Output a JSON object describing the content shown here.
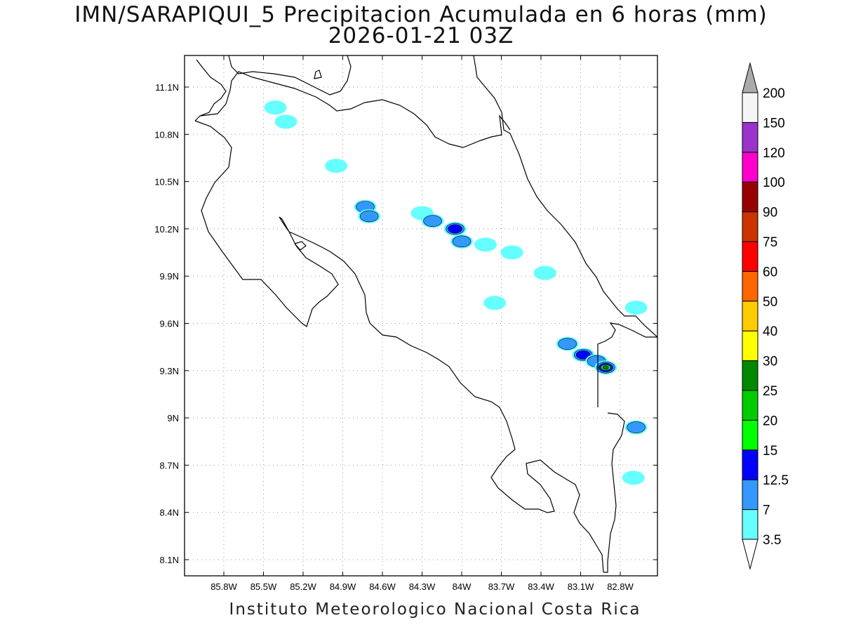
{
  "title": {
    "line1": "IMN/SARAPIQUI_5 Precipitacion Acumulada en 6 horas (mm)",
    "line2": "2026-01-21 03Z"
  },
  "footer": "Instituto Meteorologico Nacional Costa Rica",
  "map": {
    "lon_ticks": [
      "85.8W",
      "85.5W",
      "85.2W",
      "84.9W",
      "84.6W",
      "84.3W",
      "84W",
      "83.7W",
      "83.4W",
      "83.1W",
      "82.8W"
    ],
    "lat_ticks": [
      "11.1N",
      "10.8N",
      "10.5N",
      "10.2N",
      "9.9N",
      "9.6N",
      "9.3N",
      "9N",
      "8.7N",
      "8.4N",
      "8.1N"
    ],
    "lon_tick_values": [
      -85.8,
      -85.5,
      -85.2,
      -84.9,
      -84.6,
      -84.3,
      -84.0,
      -83.7,
      -83.4,
      -83.1,
      -82.8
    ],
    "lat_tick_values": [
      11.1,
      10.8,
      10.5,
      10.2,
      9.9,
      9.6,
      9.3,
      9.0,
      8.7,
      8.4,
      8.1
    ],
    "grid": true,
    "grid_style": "dotted"
  },
  "colorbar": {
    "labels": [
      "3.5",
      "7",
      "12.5",
      "15",
      "20",
      "25",
      "30",
      "40",
      "50",
      "60",
      "75",
      "90",
      "100",
      "120",
      "150",
      "200"
    ],
    "colors": [
      "#66ffff",
      "#3399ff",
      "#0000ff",
      "#00ff00",
      "#00cc00",
      "#008800",
      "#ffff00",
      "#ffcc00",
      "#ff6600",
      "#ff0000",
      "#cc3300",
      "#990000",
      "#ff00cc",
      "#9933cc",
      "#f5f5f5"
    ],
    "top_arrow_color": "#aaaaaa",
    "bottom_arrow_color": "#ffffff"
  },
  "precip_cells": [
    {
      "lon": -85.41,
      "lat": 10.97,
      "level": 0
    },
    {
      "lon": -85.33,
      "lat": 10.88,
      "level": 0
    },
    {
      "lon": -84.95,
      "lat": 10.6,
      "level": 0
    },
    {
      "lon": -84.73,
      "lat": 10.34,
      "level": 1
    },
    {
      "lon": -84.7,
      "lat": 10.28,
      "level": 1
    },
    {
      "lon": -84.3,
      "lat": 10.3,
      "level": 0
    },
    {
      "lon": -84.22,
      "lat": 10.25,
      "level": 1
    },
    {
      "lon": -84.05,
      "lat": 10.2,
      "level": 2
    },
    {
      "lon": -84.0,
      "lat": 10.12,
      "level": 1
    },
    {
      "lon": -83.82,
      "lat": 10.1,
      "level": 0
    },
    {
      "lon": -83.62,
      "lat": 10.05,
      "level": 0
    },
    {
      "lon": -83.75,
      "lat": 9.73,
      "level": 0
    },
    {
      "lon": -83.2,
      "lat": 9.47,
      "level": 1
    },
    {
      "lon": -83.08,
      "lat": 9.4,
      "level": 2
    },
    {
      "lon": -82.98,
      "lat": 9.36,
      "level": 1
    },
    {
      "lon": -82.91,
      "lat": 9.32,
      "level": 5
    },
    {
      "lon": -82.68,
      "lat": 8.94,
      "level": 1
    },
    {
      "lon": -82.7,
      "lat": 8.62,
      "level": 0
    },
    {
      "lon": -83.37,
      "lat": 9.92,
      "level": 0
    },
    {
      "lon": -82.68,
      "lat": 9.7,
      "level": 0
    }
  ]
}
